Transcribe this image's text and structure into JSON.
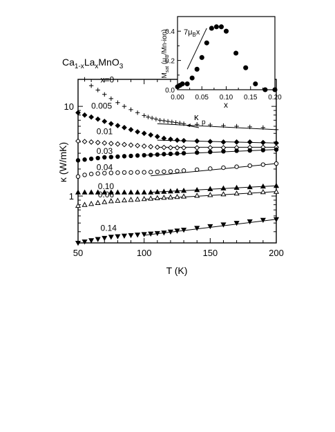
{
  "chart_data": [
    {
      "type": "scatter",
      "title_parts": [
        "Ca",
        "1-x",
        "La",
        "x",
        "MnO",
        "3"
      ],
      "xlabel": "T (K)",
      "ylabel": "κ (W/mK)",
      "xlim": [
        50,
        200
      ],
      "ylim": [
        0.3,
        20
      ],
      "yscale": "log",
      "xticks": [
        "50",
        "100",
        "150",
        "200"
      ],
      "yticks": [
        {
          "value": 1,
          "label": "1"
        },
        {
          "value": 10,
          "label": "10"
        }
      ],
      "grid": false,
      "annotation": {
        "base": "κ",
        "sub": "p"
      },
      "series": [
        {
          "name": "x=0",
          "marker": "plus",
          "fit": [
            [
              110,
              6.4
            ],
            [
              200,
              5.5
            ]
          ],
          "x": [
            55,
            60,
            65,
            70,
            75,
            80,
            85,
            90,
            95,
            100,
            103,
            106,
            109,
            112,
            115,
            118,
            121,
            124,
            127,
            130,
            140,
            150,
            160,
            170,
            180,
            190,
            200
          ],
          "y": [
            20,
            17,
            15.2,
            13.6,
            12.2,
            11,
            10,
            9.2,
            8.5,
            7.9,
            7.6,
            7.4,
            7.2,
            7.0,
            6.9,
            6.8,
            6.7,
            6.6,
            6.5,
            6.4,
            6.3,
            6.2,
            6.1,
            6.0,
            5.9,
            5.8,
            5.5
          ]
        },
        {
          "name": "0.005",
          "marker": "diamond-filled",
          "fit": [
            [
              110,
              4.2
            ],
            [
              200,
              3.9
            ]
          ],
          "x": [
            50,
            55,
            60,
            65,
            70,
            75,
            80,
            85,
            90,
            95,
            100,
            105,
            110,
            115,
            120,
            125,
            130,
            140,
            150,
            160,
            170,
            180,
            190,
            200
          ],
          "y": [
            8.5,
            8.0,
            7.6,
            7.2,
            6.8,
            6.4,
            6.1,
            5.8,
            5.5,
            5.2,
            5.0,
            4.8,
            4.6,
            4.4,
            4.3,
            4.2,
            4.15,
            4.1,
            4.05,
            4.0,
            4.0,
            4.0,
            3.95,
            3.9
          ]
        },
        {
          "name": "0.01",
          "marker": "diamond-open",
          "fit": [
            [
              110,
              3.5
            ],
            [
              200,
              3.5
            ]
          ],
          "x": [
            50,
            55,
            60,
            65,
            70,
            75,
            80,
            85,
            90,
            95,
            100,
            105,
            110,
            115,
            120,
            125,
            130,
            140,
            150,
            160,
            170,
            180,
            190,
            200
          ],
          "y": [
            4.1,
            4.05,
            4.0,
            3.95,
            3.9,
            3.85,
            3.8,
            3.75,
            3.7,
            3.65,
            3.6,
            3.55,
            3.5,
            3.48,
            3.46,
            3.45,
            3.45,
            3.45,
            3.46,
            3.46,
            3.47,
            3.48,
            3.5,
            3.5
          ]
        },
        {
          "name": "0.03",
          "marker": "circle-filled",
          "fit": [
            [
              100,
              2.85
            ],
            [
              200,
              3.3
            ]
          ],
          "x": [
            50,
            55,
            60,
            65,
            70,
            75,
            80,
            85,
            90,
            95,
            100,
            105,
            110,
            115,
            120,
            125,
            130,
            140,
            150,
            160,
            170,
            180,
            190,
            200
          ],
          "y": [
            2.5,
            2.55,
            2.6,
            2.65,
            2.7,
            2.72,
            2.75,
            2.78,
            2.8,
            2.83,
            2.85,
            2.87,
            2.9,
            2.93,
            2.95,
            2.98,
            3.0,
            3.05,
            3.1,
            3.15,
            3.2,
            3.22,
            3.25,
            3.3
          ]
        },
        {
          "name": "0.04",
          "marker": "circle-open",
          "fit": [
            [
              105,
              1.68
            ],
            [
              200,
              2.3
            ]
          ],
          "x": [
            50,
            55,
            60,
            65,
            70,
            75,
            80,
            85,
            90,
            95,
            100,
            105,
            110,
            115,
            120,
            125,
            130,
            140,
            150,
            160,
            170,
            180,
            190,
            200
          ],
          "y": [
            1.65,
            1.72,
            1.76,
            1.78,
            1.8,
            1.81,
            1.82,
            1.83,
            1.83,
            1.84,
            1.84,
            1.85,
            1.86,
            1.87,
            1.88,
            1.9,
            1.92,
            1.97,
            2.02,
            2.07,
            2.12,
            2.18,
            2.24,
            2.3
          ]
        },
        {
          "name": "0.10",
          "marker": "triangle-up-filled",
          "fit": [
            [
              105,
              1.1
            ],
            [
              200,
              1.3
            ]
          ],
          "x": [
            50,
            55,
            60,
            65,
            70,
            75,
            80,
            85,
            90,
            95,
            100,
            105,
            110,
            115,
            120,
            125,
            130,
            140,
            150,
            160,
            170,
            180,
            190,
            200
          ],
          "y": [
            1.1,
            1.1,
            1.1,
            1.1,
            1.1,
            1.1,
            1.1,
            1.1,
            1.1,
            1.1,
            1.1,
            1.1,
            1.11,
            1.12,
            1.13,
            1.14,
            1.15,
            1.17,
            1.2,
            1.22,
            1.24,
            1.26,
            1.28,
            1.3
          ]
        },
        {
          "name": "0.06",
          "marker": "triangle-up-open",
          "fit": [
            [
              100,
              0.92
            ],
            [
              200,
              1.12
            ]
          ],
          "x": [
            50,
            55,
            60,
            65,
            70,
            75,
            80,
            85,
            90,
            95,
            100,
            105,
            110,
            115,
            120,
            125,
            130,
            140,
            150,
            160,
            170,
            180,
            190,
            200
          ],
          "y": [
            0.78,
            0.8,
            0.82,
            0.84,
            0.86,
            0.88,
            0.89,
            0.9,
            0.91,
            0.92,
            0.93,
            0.94,
            0.95,
            0.96,
            0.97,
            0.98,
            0.99,
            1.01,
            1.03,
            1.05,
            1.07,
            1.09,
            1.11,
            1.12
          ]
        },
        {
          "name": "0.14",
          "marker": "triangle-down-filled",
          "fit": [
            [
              100,
              0.365
            ],
            [
              200,
              0.55
            ]
          ],
          "x": [
            50,
            55,
            60,
            65,
            70,
            75,
            80,
            85,
            90,
            95,
            100,
            105,
            110,
            115,
            120,
            125,
            130,
            140,
            150,
            160,
            170,
            180,
            190,
            200
          ],
          "y": [
            0.3,
            0.31,
            0.32,
            0.33,
            0.34,
            0.35,
            0.355,
            0.36,
            0.365,
            0.37,
            0.375,
            0.38,
            0.385,
            0.39,
            0.4,
            0.41,
            0.42,
            0.44,
            0.46,
            0.48,
            0.5,
            0.52,
            0.54,
            0.55
          ]
        }
      ]
    },
    {
      "type": "scatter",
      "xlabel": "x",
      "ylabel_parts": [
        "M",
        "sat",
        " (μ",
        "B",
        "/Mn-ion)"
      ],
      "xlim": [
        0,
        0.2
      ],
      "ylim": [
        0,
        0.5
      ],
      "xticks": [
        "0.00",
        "0.05",
        "0.10",
        "0.15",
        "0.20"
      ],
      "yticks": [
        "0.0",
        "0.2",
        "0.4"
      ],
      "grid": false,
      "annotation_parts": [
        "7μ",
        "B",
        "x"
      ],
      "line": [
        [
          0.02,
          0.14
        ],
        [
          0.06,
          0.42
        ]
      ],
      "series": [
        {
          "marker": "circle-filled",
          "x": [
            0.0,
            0.005,
            0.01,
            0.02,
            0.03,
            0.04,
            0.05,
            0.06,
            0.07,
            0.08,
            0.09,
            0.1,
            0.12,
            0.14,
            0.16,
            0.18,
            0.2
          ],
          "y": [
            0.02,
            0.03,
            0.04,
            0.04,
            0.08,
            0.14,
            0.22,
            0.32,
            0.42,
            0.43,
            0.43,
            0.4,
            0.25,
            0.15,
            0.04,
            0.0,
            0.0
          ]
        }
      ]
    }
  ]
}
